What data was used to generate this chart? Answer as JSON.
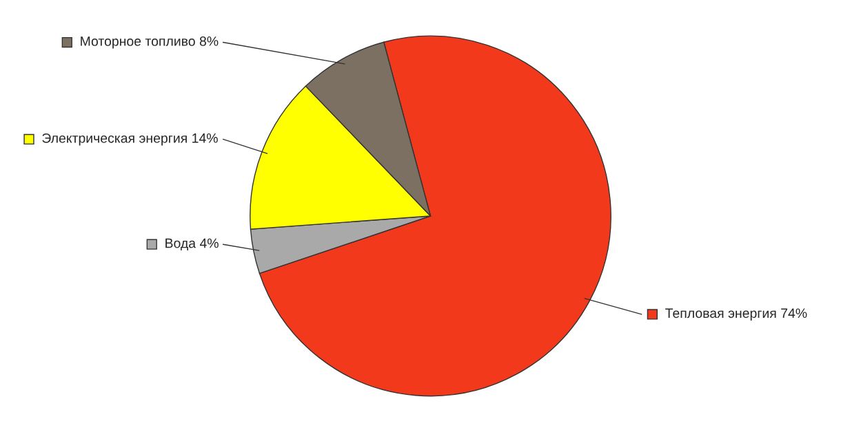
{
  "chart_data": {
    "type": "pie",
    "categories": [
      "Тепловая энергия",
      "Вода",
      "Электрическая энергия",
      "Моторное топливо"
    ],
    "values": [
      74,
      4,
      14,
      8
    ],
    "value_labels": [
      "74%",
      "4%",
      "14%",
      "8%"
    ],
    "colors": [
      "#f2391c",
      "#a9a9a9",
      "#ffff00",
      "#7b7062"
    ],
    "legend": "left"
  }
}
